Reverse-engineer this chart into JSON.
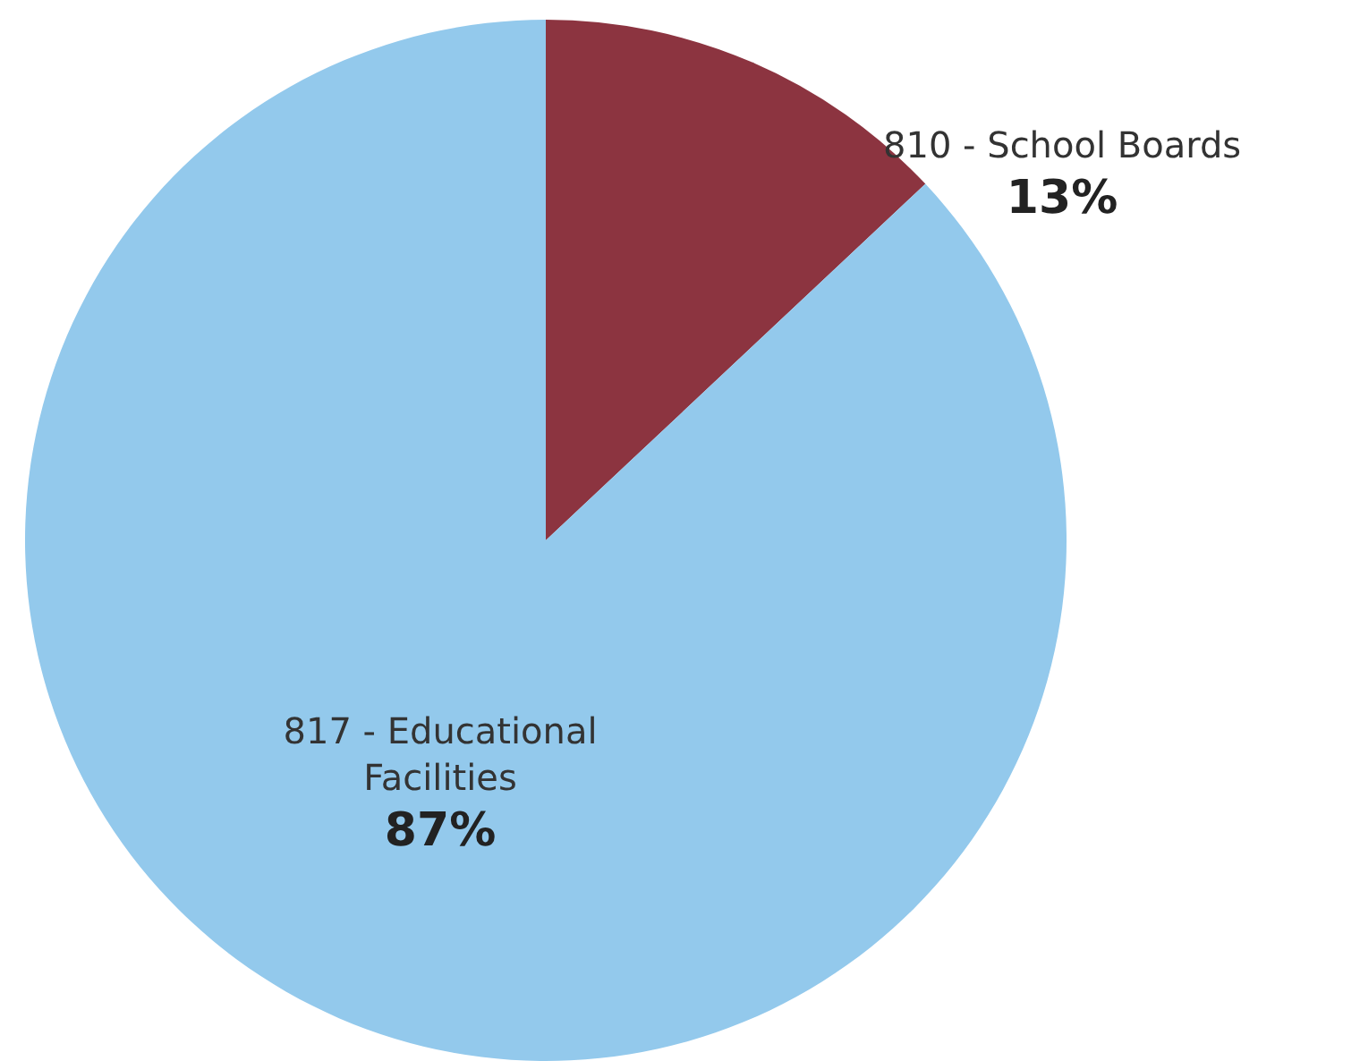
{
  "chart_data": {
    "type": "pie",
    "categories": [
      "810 - School Boards",
      "817 - Educational Facilities"
    ],
    "values": [
      13,
      87
    ],
    "value_labels": [
      "13%",
      "87%"
    ],
    "colors": [
      "#8c3440",
      "#93c9ec"
    ]
  }
}
